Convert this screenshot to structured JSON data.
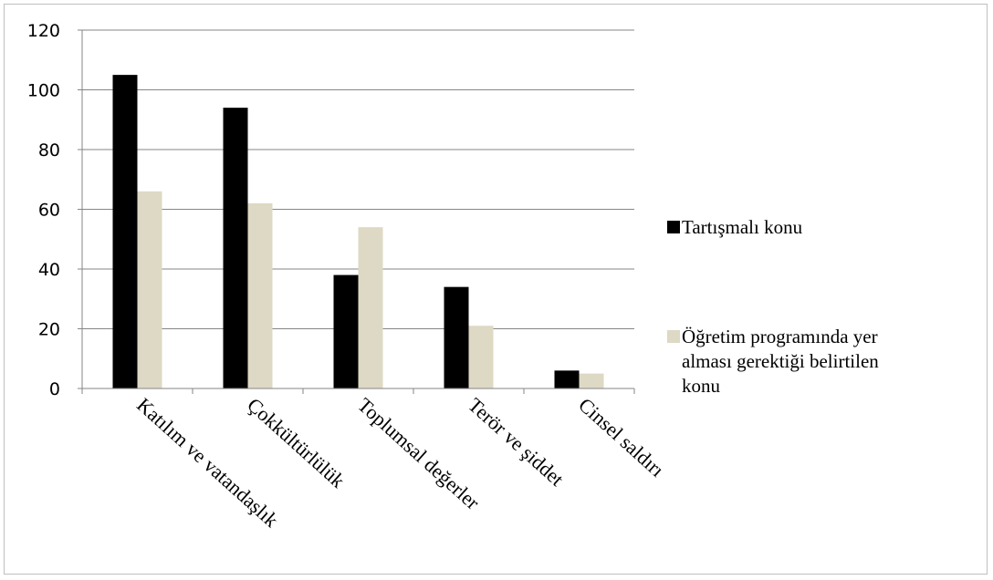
{
  "chart_data": {
    "type": "bar",
    "categories": [
      "Katılım ve vatandaşlık",
      "Çokkültürlülük",
      "Toplumsal değerler",
      "Terör ve şiddet",
      "Cinsel saldırı"
    ],
    "series": [
      {
        "name": "Tartışmalı konu",
        "values": [
          105,
          94,
          38,
          34,
          6
        ],
        "color": "#000000"
      },
      {
        "name": "Öğretim programında yer alması gerektiği belirtilen konu",
        "values": [
          66,
          62,
          54,
          21,
          5
        ],
        "color": "#ddd9c4"
      }
    ],
    "yticks": [
      0,
      20,
      40,
      60,
      80,
      100,
      120
    ],
    "ylim": [
      0,
      120
    ],
    "grid": true,
    "legend_position": "right",
    "legend_lines": [
      [
        "Tartışmalı konu"
      ],
      [
        "Öğretim programında yer",
        "alması gerektiği belirtilen",
        "konu"
      ]
    ]
  }
}
